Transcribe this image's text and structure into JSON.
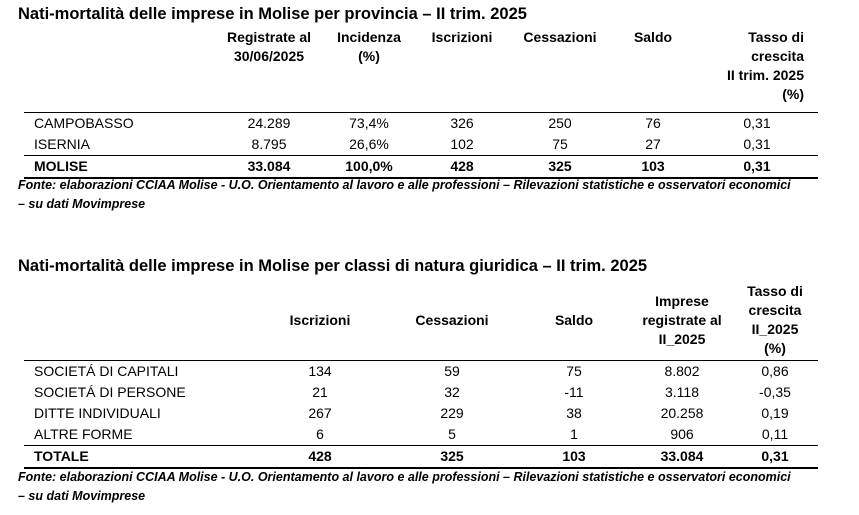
{
  "table1": {
    "title": "Nati-mortalità delle imprese in Molise per provincia – II trim. 2025",
    "headers": [
      "",
      [
        "Registrate al",
        "30/06/2025"
      ],
      [
        "Incidenza",
        "(%)"
      ],
      [
        "Iscrizioni"
      ],
      [
        "Cessazioni"
      ],
      [
        "Saldo"
      ],
      [
        "Tasso di",
        "crescita",
        "II trim. 2025",
        "(%)"
      ]
    ],
    "rows": [
      [
        "CAMPOBASSO",
        "24.289",
        "73,4%",
        "326",
        "250",
        "76",
        "0,31"
      ],
      [
        "ISERNIA",
        "8.795",
        "26,6%",
        "102",
        "75",
        "27",
        "0,31"
      ]
    ],
    "total": [
      "MOLISE",
      "33.084",
      "100,0%",
      "428",
      "325",
      "103",
      "0,31"
    ],
    "note": [
      "Fonte: elaborazioni CCIAA Molise - U.O. Orientamento al lavoro e alle professioni – Rilevazioni statistiche e osservatori economici",
      "– su dati Movimprese"
    ]
  },
  "table2": {
    "title": "Nati-mortalità delle imprese in Molise per classi di natura giuridica – II trim. 2025",
    "headers": [
      "",
      [
        "Iscrizioni"
      ],
      [
        "Cessazioni"
      ],
      [
        "Saldo"
      ],
      [
        "Imprese",
        "registrate al",
        "II_2025"
      ],
      [
        "Tasso di",
        "crescita",
        "II_2025",
        "(%)"
      ]
    ],
    "rows": [
      [
        "SOCIETÁ DI CAPITALI",
        "134",
        "59",
        "75",
        "8.802",
        "0,86"
      ],
      [
        "SOCIETÁ DI PERSONE",
        "21",
        "32",
        "-11",
        "3.118",
        "-0,35"
      ],
      [
        "DITTE INDIVIDUALI",
        "267",
        "229",
        "38",
        "20.258",
        "0,19"
      ],
      [
        "ALTRE FORME",
        "6",
        "5",
        "1",
        "906",
        "0,11"
      ]
    ],
    "total": [
      "TOTALE",
      "428",
      "325",
      "103",
      "33.084",
      "0,31"
    ],
    "note": [
      "Fonte: elaborazioni CCIAA Molise - U.O. Orientamento al lavoro e alle professioni – Rilevazioni statistiche e osservatori economici",
      "– su dati Movimprese"
    ]
  }
}
